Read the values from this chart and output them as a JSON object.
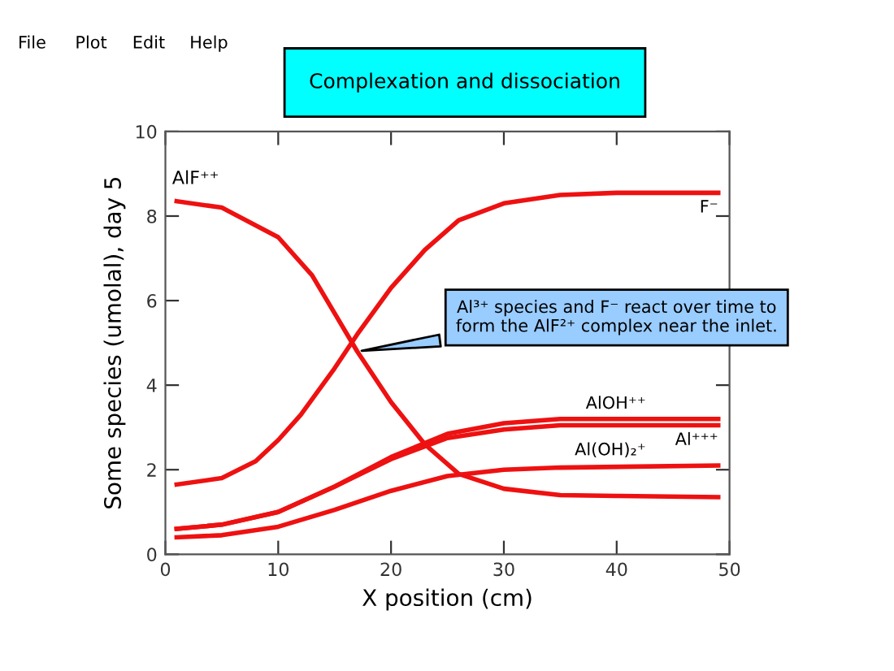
{
  "chart_data": {
    "type": "line",
    "title": "Complexation and dissociation",
    "xlabel": "X position (cm)",
    "ylabel": "Some species (umolal), day 5",
    "xlim": [
      0,
      50
    ],
    "xticks": [
      0,
      10,
      20,
      30,
      40,
      50
    ],
    "ylim": [
      0,
      10
    ],
    "yticks": [
      0,
      2,
      4,
      6,
      8,
      10
    ],
    "grid": false,
    "legend": false,
    "marker": "none",
    "line_style": "solid",
    "series": [
      {
        "name": "AlF⁺⁺",
        "color": "#ee1111",
        "x": [
          1,
          5,
          10,
          13,
          15,
          17,
          20,
          23,
          26,
          30,
          35,
          40,
          49
        ],
        "values": [
          8.35,
          8.2,
          7.5,
          6.6,
          5.7,
          4.8,
          3.6,
          2.6,
          1.9,
          1.55,
          1.4,
          1.38,
          1.35
        ]
      },
      {
        "name": "F⁻",
        "color": "#ee1111",
        "x": [
          1,
          5,
          8,
          10,
          12,
          15,
          17,
          20,
          23,
          26,
          30,
          35,
          40,
          49
        ],
        "values": [
          1.65,
          1.8,
          2.2,
          2.7,
          3.3,
          4.4,
          5.2,
          6.3,
          7.2,
          7.9,
          8.3,
          8.5,
          8.55,
          8.55
        ]
      },
      {
        "name": "AlOH⁺⁺",
        "color": "#ee1111",
        "x": [
          1,
          5,
          10,
          15,
          20,
          25,
          30,
          35,
          49
        ],
        "values": [
          0.6,
          0.7,
          1.0,
          1.6,
          2.3,
          2.85,
          3.1,
          3.2,
          3.2
        ]
      },
      {
        "name": "Al⁺⁺⁺",
        "color": "#ee1111",
        "x": [
          1,
          5,
          10,
          15,
          20,
          25,
          30,
          35,
          49
        ],
        "values": [
          0.6,
          0.7,
          1.0,
          1.6,
          2.25,
          2.75,
          2.95,
          3.05,
          3.05
        ]
      },
      {
        "name": "Al(OH)₂⁺",
        "color": "#ee1111",
        "x": [
          1,
          5,
          10,
          15,
          20,
          25,
          30,
          35,
          49
        ],
        "values": [
          0.4,
          0.45,
          0.65,
          1.05,
          1.5,
          1.85,
          2.0,
          2.05,
          2.1
        ]
      }
    ],
    "annotations": [
      {
        "text": "Al³⁺ species and F⁻ react over time to\nform the AlF²⁺ complex near the inlet.",
        "x": 17,
        "y": 4.8
      },
      "File",
      "Plot",
      "Edit",
      "Help"
    ]
  }
}
